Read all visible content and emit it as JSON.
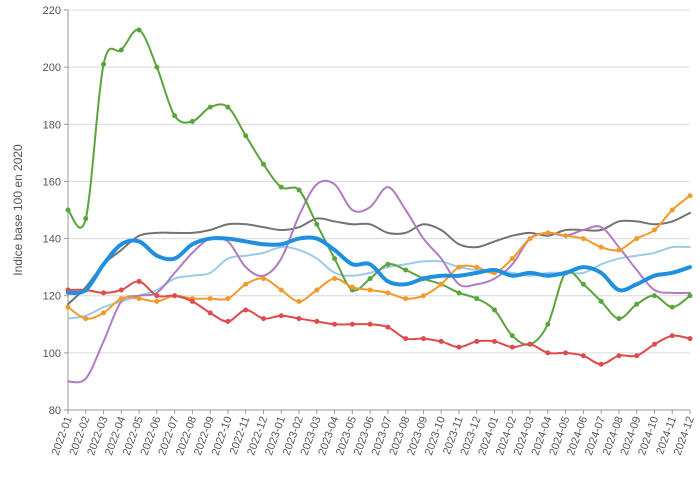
{
  "chart_data": {
    "type": "line",
    "y_label": "Indice base 100 en 2020",
    "categories": [
      "2022-01",
      "2022-02",
      "2022-03",
      "2022-04",
      "2022-05",
      "2022-06",
      "2022-07",
      "2022-08",
      "2022-09",
      "2022-10",
      "2022-11",
      "2022-12",
      "2023-01",
      "2023-02",
      "2023-03",
      "2023-04",
      "2023-05",
      "2023-06",
      "2023-07",
      "2023-08",
      "2023-09",
      "2023-10",
      "2023-11",
      "2023-12",
      "2024-01",
      "2024-02",
      "2024-03",
      "2024-04",
      "2024-05",
      "2024-06",
      "2024-07",
      "2024-08",
      "2024-09",
      "2024-10",
      "2024-11",
      "2024-12"
    ],
    "ylim": [
      80,
      220
    ],
    "yticks": [
      80,
      100,
      120,
      140,
      160,
      180,
      200,
      220
    ],
    "grid": true,
    "smooth": true,
    "series": [
      {
        "color": "#737373",
        "width": 2,
        "markers": false,
        "values": [
          117,
          123,
          131,
          136,
          141,
          142,
          142,
          142,
          143,
          145,
          145,
          144,
          143,
          144,
          147,
          146,
          145,
          145,
          142,
          142,
          145,
          143,
          138,
          137,
          139,
          141,
          142,
          141,
          143,
          143,
          143,
          146,
          146,
          145,
          146,
          149
        ]
      },
      {
        "color": "#9ecae9",
        "width": 2,
        "markers": false,
        "values": [
          112,
          113,
          116,
          118,
          120,
          122,
          126,
          127,
          128,
          133,
          134,
          135,
          137,
          136,
          133,
          128,
          127,
          128,
          130,
          131,
          132,
          132,
          130,
          129,
          129,
          128,
          127,
          128,
          128,
          128,
          131,
          133,
          134,
          135,
          137,
          137
        ]
      },
      {
        "color": "#b07cc0",
        "width": 2,
        "markers": false,
        "values": [
          90,
          91,
          104,
          118,
          120,
          121,
          128,
          135,
          140,
          139,
          130,
          127,
          133,
          148,
          159,
          159,
          150,
          151,
          158,
          150,
          140,
          133,
          124,
          124,
          126,
          131,
          140,
          142,
          141,
          143,
          144,
          137,
          129,
          122,
          121,
          121
        ]
      },
      {
        "color": "#5aa43c",
        "width": 2,
        "markers": true,
        "values": [
          150,
          147,
          201,
          206,
          213,
          200,
          183,
          181,
          186,
          186,
          176,
          166,
          158,
          157,
          145,
          133,
          122,
          126,
          131,
          129,
          126,
          124,
          121,
          119,
          115,
          106,
          103,
          110,
          128,
          124,
          118,
          112,
          117,
          120,
          116,
          120
        ]
      },
      {
        "color": "#f39a2d",
        "width": 2,
        "markers": true,
        "values": [
          116,
          112,
          114,
          119,
          119,
          118,
          120,
          119,
          119,
          119,
          124,
          126,
          122,
          118,
          122,
          126,
          123,
          122,
          121,
          119,
          120,
          124,
          130,
          130,
          128,
          133,
          140,
          142,
          141,
          140,
          137,
          136,
          140,
          143,
          150,
          155
        ]
      },
      {
        "color": "#dd4b4b",
        "width": 2,
        "markers": true,
        "values": [
          122,
          122,
          121,
          122,
          125,
          120,
          120,
          118,
          114,
          111,
          115,
          112,
          113,
          112,
          111,
          110,
          110,
          110,
          109,
          105,
          105,
          104,
          102,
          104,
          104,
          102,
          103,
          100,
          100,
          99,
          96,
          99,
          99,
          103,
          106,
          105
        ]
      },
      {
        "color": "#1f8fe0",
        "width": 4,
        "markers": false,
        "values": [
          121,
          122,
          131,
          138,
          139,
          134,
          133,
          138,
          140,
          140,
          139,
          138,
          138,
          140,
          140,
          136,
          131,
          131,
          125,
          124,
          126,
          127,
          127,
          128,
          129,
          127,
          128,
          127,
          128,
          130,
          128,
          122,
          124,
          127,
          128,
          130
        ]
      }
    ]
  }
}
